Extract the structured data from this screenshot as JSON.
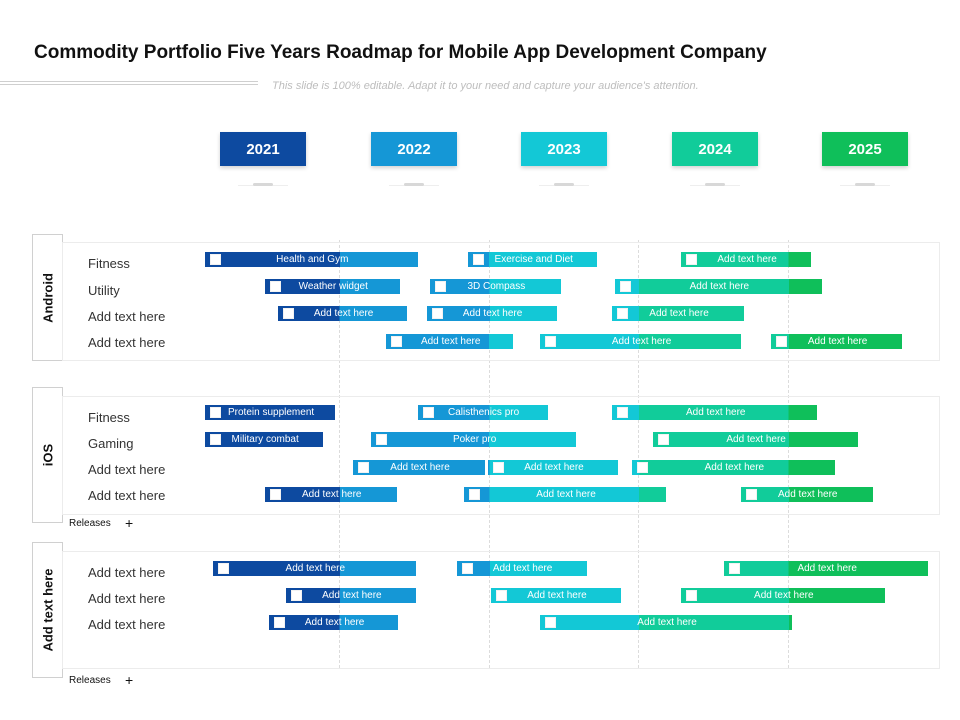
{
  "title": "Commodity Portfolio Five Years Roadmap for Mobile App Development Company",
  "subtitle": "This slide is 100% editable. Adapt it to your need and capture your audience's attention.",
  "years": [
    "2021",
    "2022",
    "2023",
    "2024",
    "2025"
  ],
  "colors": {
    "y2021": "#0d4aa0",
    "y2022": "#1597d6",
    "y2023": "#13c8d6",
    "y2024": "#11cc9a",
    "y2025": "#0fbf5a"
  },
  "sections": [
    {
      "label": "Android",
      "rows": [
        "Fitness",
        "Utility",
        "Add text here",
        "Add text here"
      ],
      "tasks": [
        {
          "label": "Health and Gym",
          "row": 0,
          "start_year": 2021.1,
          "end_year": 2022.52
        },
        {
          "label": "Exercise and Diet",
          "row": 0,
          "start_year": 2022.86,
          "end_year": 2023.72
        },
        {
          "label": "Add text here",
          "row": 0,
          "start_year": 2024.28,
          "end_year": 2025.15
        },
        {
          "label": "Weather widget",
          "row": 1,
          "start_year": 2021.5,
          "end_year": 2022.4
        },
        {
          "label": "3D Compass",
          "row": 1,
          "start_year": 2022.6,
          "end_year": 2023.48
        },
        {
          "label": "Add text here",
          "row": 1,
          "start_year": 2023.84,
          "end_year": 2025.22
        },
        {
          "label": "Add text here",
          "row": 2,
          "start_year": 2021.59,
          "end_year": 2022.45
        },
        {
          "label": "Add text here",
          "row": 2,
          "start_year": 2022.58,
          "end_year": 2023.45
        },
        {
          "label": "Add text here",
          "row": 2,
          "start_year": 2023.82,
          "end_year": 2024.7
        },
        {
          "label": "Add text here",
          "row": 3,
          "start_year": 2022.31,
          "end_year": 2023.16
        },
        {
          "label": "Add text here",
          "row": 3,
          "start_year": 2023.34,
          "end_year": 2024.68
        },
        {
          "label": "Add text here",
          "row": 3,
          "start_year": 2024.88,
          "end_year": 2025.76
        }
      ]
    },
    {
      "label": "iOS",
      "rows": [
        "Fitness",
        "Gaming",
        "Add text here",
        "Add text here"
      ],
      "tasks": [
        {
          "label": "Protein supplement",
          "row": 0,
          "start_year": 2021.1,
          "end_year": 2021.97
        },
        {
          "label": "Calisthenics pro",
          "row": 0,
          "start_year": 2022.52,
          "end_year": 2023.39
        },
        {
          "label": "Add text here",
          "row": 0,
          "start_year": 2023.82,
          "end_year": 2025.19
        },
        {
          "label": "Military combat",
          "row": 1,
          "start_year": 2021.1,
          "end_year": 2021.89
        },
        {
          "label": "Poker pro",
          "row": 1,
          "start_year": 2022.21,
          "end_year": 2023.58
        },
        {
          "label": "Add text here",
          "row": 1,
          "start_year": 2024.09,
          "end_year": 2025.46
        },
        {
          "label": "Add text here",
          "row": 2,
          "start_year": 2022.09,
          "end_year": 2022.97
        },
        {
          "label": "Add text here",
          "row": 2,
          "start_year": 2022.99,
          "end_year": 2023.86
        },
        {
          "label": "Add text here",
          "row": 2,
          "start_year": 2023.95,
          "end_year": 2025.31
        },
        {
          "label": "Add text here",
          "row": 3,
          "start_year": 2021.5,
          "end_year": 2022.38
        },
        {
          "label": "Add text here",
          "row": 3,
          "start_year": 2022.83,
          "end_year": 2024.18
        },
        {
          "label": "Add text here",
          "row": 3,
          "start_year": 2024.68,
          "end_year": 2025.56
        }
      ]
    },
    {
      "label": "Add text here",
      "rows": [
        "Add text here",
        "Add text here",
        "Add text here"
      ],
      "tasks": [
        {
          "label": "Add text here",
          "row": 0,
          "start_year": 2021.15,
          "end_year": 2022.51
        },
        {
          "label": "Add text here",
          "row": 0,
          "start_year": 2022.78,
          "end_year": 2023.65
        },
        {
          "label": "Add text here",
          "row": 0,
          "start_year": 2024.57,
          "end_year": 2025.93
        },
        {
          "label": "Add text here",
          "row": 1,
          "start_year": 2021.64,
          "end_year": 2022.51
        },
        {
          "label": "Add text here",
          "row": 1,
          "start_year": 2023.01,
          "end_year": 2023.88
        },
        {
          "label": "Add text here",
          "row": 1,
          "start_year": 2024.28,
          "end_year": 2025.64
        },
        {
          "label": "Add text here",
          "row": 2,
          "start_year": 2021.53,
          "end_year": 2022.39
        },
        {
          "label": "Add text here",
          "row": 2,
          "start_year": 2023.34,
          "end_year": 2025.02
        }
      ]
    }
  ],
  "releases_label": "Releases",
  "plus_symbol": "+"
}
